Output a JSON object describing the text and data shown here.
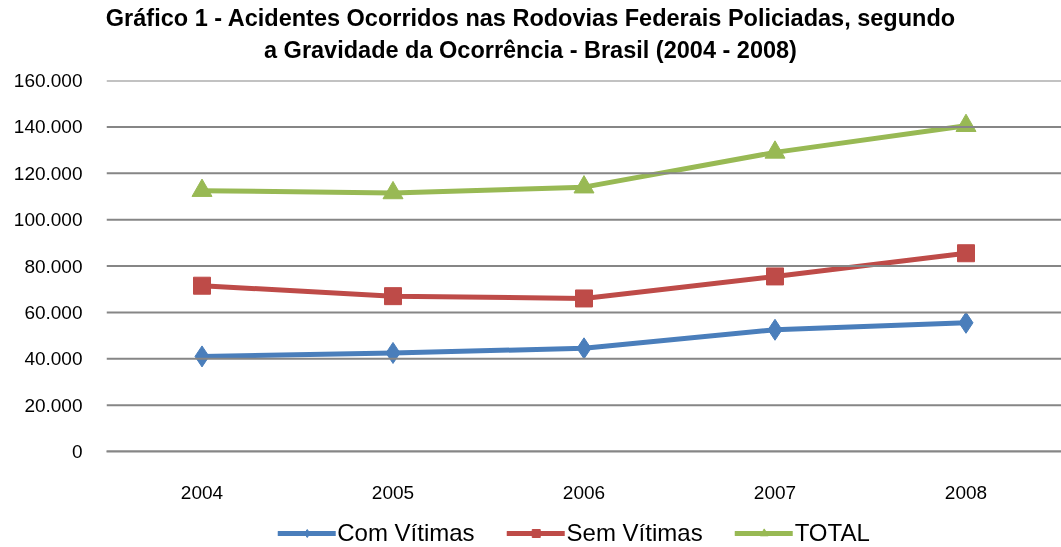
{
  "chart_data": {
    "type": "line",
    "title": "Gráfico 1 - Acidentes Ocorridos nas Rodovias Federais Policiadas, segundo a Gravidade da Ocorrência - Brasil (2004 - 2008)",
    "categories": [
      "2004",
      "2005",
      "2006",
      "2007",
      "2008"
    ],
    "series": [
      {
        "name": "Com Vítimas",
        "color": "#4a7ebb",
        "marker": "diamond",
        "values": [
          41000,
          42500,
          44500,
          52500,
          55500
        ]
      },
      {
        "name": "Sem Vítimas",
        "color": "#be4b48",
        "marker": "square",
        "values": [
          71500,
          67000,
          66000,
          75500,
          85500
        ]
      },
      {
        "name": "TOTAL",
        "color": "#98b954",
        "marker": "triangle",
        "values": [
          112500,
          111500,
          114000,
          129000,
          140500
        ]
      }
    ],
    "ylim": [
      0,
      160000
    ],
    "yticks": [
      {
        "value": 0,
        "label": "0"
      },
      {
        "value": 20000,
        "label": "20.000"
      },
      {
        "value": 40000,
        "label": "40.000"
      },
      {
        "value": 60000,
        "label": "60.000"
      },
      {
        "value": 80000,
        "label": "80.000"
      },
      {
        "value": 100000,
        "label": "100.000"
      },
      {
        "value": 120000,
        "label": "120.000"
      },
      {
        "value": 140000,
        "label": "140.000"
      },
      {
        "value": 160000,
        "label": "160.000"
      }
    ],
    "grid": "y",
    "legend": "bottom",
    "line_style": "solid"
  }
}
